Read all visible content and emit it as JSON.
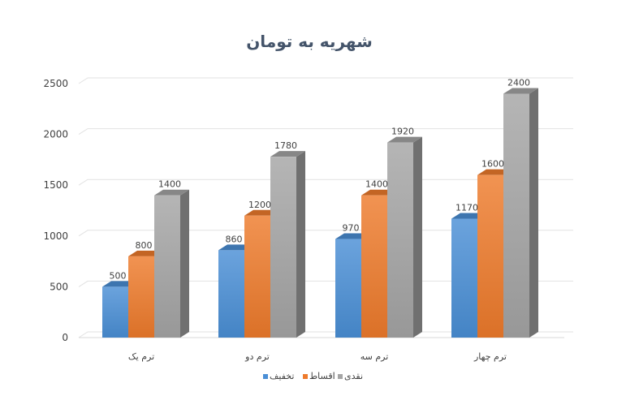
{
  "chart_data": {
    "type": "bar",
    "title": "شهریه به تومان",
    "categories": [
      "ترم یک",
      "ترم دو",
      "ترم سه",
      "ترم چهار"
    ],
    "series": [
      {
        "name": "تخفیف",
        "values": [
          500,
          860,
          970,
          1170
        ],
        "color": "#4a8fd6"
      },
      {
        "name": "اقساط",
        "values": [
          800,
          1200,
          1400,
          1600
        ],
        "color": "#ee7b2c"
      },
      {
        "name": "نقدی",
        "values": [
          1400,
          1780,
          1920,
          2400
        ],
        "color": "#a5a5a5"
      }
    ],
    "y_ticks": [
      0,
      500,
      1000,
      1500,
      2000,
      2500
    ],
    "ylim": [
      0,
      2500
    ],
    "grid": true,
    "legend_position": "bottom",
    "style": "3d-column"
  }
}
